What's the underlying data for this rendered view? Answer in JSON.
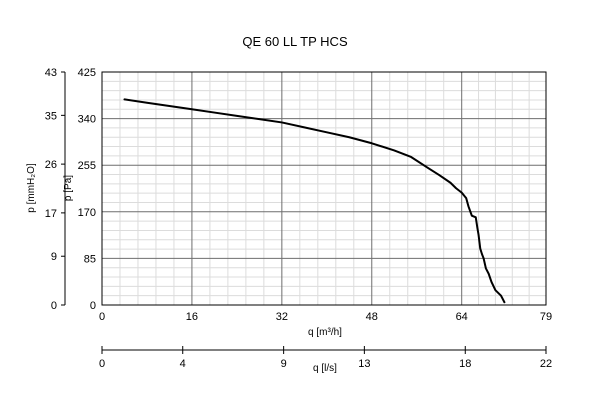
{
  "chart_data": {
    "type": "line",
    "title": "QE 60 LL TP HCS",
    "x_axis": {
      "label": "q [m³/h]",
      "lim": [
        0,
        79
      ],
      "ticks": [
        0,
        16,
        32,
        48,
        64,
        79
      ]
    },
    "x2_axis": {
      "label": "q [l/s]",
      "lim": [
        0,
        22
      ],
      "ticks": [
        0,
        4,
        9,
        13,
        18,
        22
      ]
    },
    "y_axis": {
      "label": "p [Pa]",
      "lim": [
        0,
        425
      ],
      "ticks": [
        0,
        85,
        170,
        255,
        340,
        425
      ]
    },
    "y2_axis": {
      "label": "p [mmH₂O]",
      "lim": [
        0,
        43
      ],
      "ticks": [
        0,
        9,
        17,
        26,
        35,
        43
      ]
    },
    "grid": true,
    "series": [
      {
        "x": [
          4,
          8,
          12,
          16,
          20,
          24,
          28,
          32,
          36,
          40,
          44,
          48,
          52,
          55,
          58,
          60,
          62,
          63,
          64,
          64.8,
          65.2,
          65.8,
          66.5,
          66.8,
          67,
          67.3,
          67.6,
          67.9,
          68.3,
          68.8,
          69.3,
          70,
          71,
          71.6
        ],
        "y": [
          375,
          369,
          363,
          357,
          351,
          345,
          339,
          333,
          324,
          315,
          306,
          295,
          282,
          270,
          250,
          237,
          223,
          213,
          205,
          195,
          180,
          163,
          160,
          140,
          128,
          103,
          93,
          85,
          67,
          57,
          42,
          27,
          17,
          5
        ],
        "color": "#000000"
      }
    ]
  }
}
